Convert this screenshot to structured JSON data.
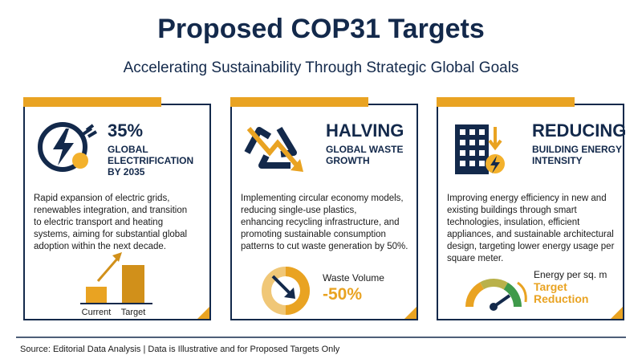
{
  "header": {
    "title": "Proposed COP31 Targets",
    "subtitle": "Accelerating Sustainability Through Strategic Global Goals"
  },
  "cards": [
    {
      "headline": "35%",
      "subheadline": [
        "GLOBAL",
        "ELECTRIFICATION",
        "BY 2035"
      ],
      "description": [
        "Rapid expansion of electric grids,",
        "renewables integration, and transition",
        "to electric transport and heating",
        "systems, aiming for substantial global",
        "adoption within the next decade."
      ],
      "visual": {
        "labels": [
          "Current",
          "Target"
        ]
      }
    },
    {
      "headline": "HALVING",
      "subheadline": [
        "GLOBAL WASTE",
        "GROWTH"
      ],
      "description": [
        "Implementing circular economy models,",
        "reducing single-use plastics,",
        "enhancing recycling infrastructure, and",
        "promoting sustainable consumption",
        "patterns to cut waste generation by 50%."
      ],
      "visual": {
        "label": "Waste Volume",
        "value": "-50%"
      }
    },
    {
      "headline": "REDUCING",
      "subheadline": [
        "BUILDING ENERGY",
        "INTENSITY"
      ],
      "description": [
        "Improving energy efficiency in new and",
        "existing buildings through smart",
        "technologies, insulation, efficient",
        "appliances, and sustainable architectural",
        "design, targeting lower energy usage per",
        "square meter."
      ],
      "visual": {
        "label": "Energy per sq. m",
        "value": [
          "Target",
          "Reduction"
        ]
      }
    }
  ],
  "footer": {
    "source": "Source: Editorial Data Analysis | Data is Illustrative and for Proposed Targets Only"
  }
}
